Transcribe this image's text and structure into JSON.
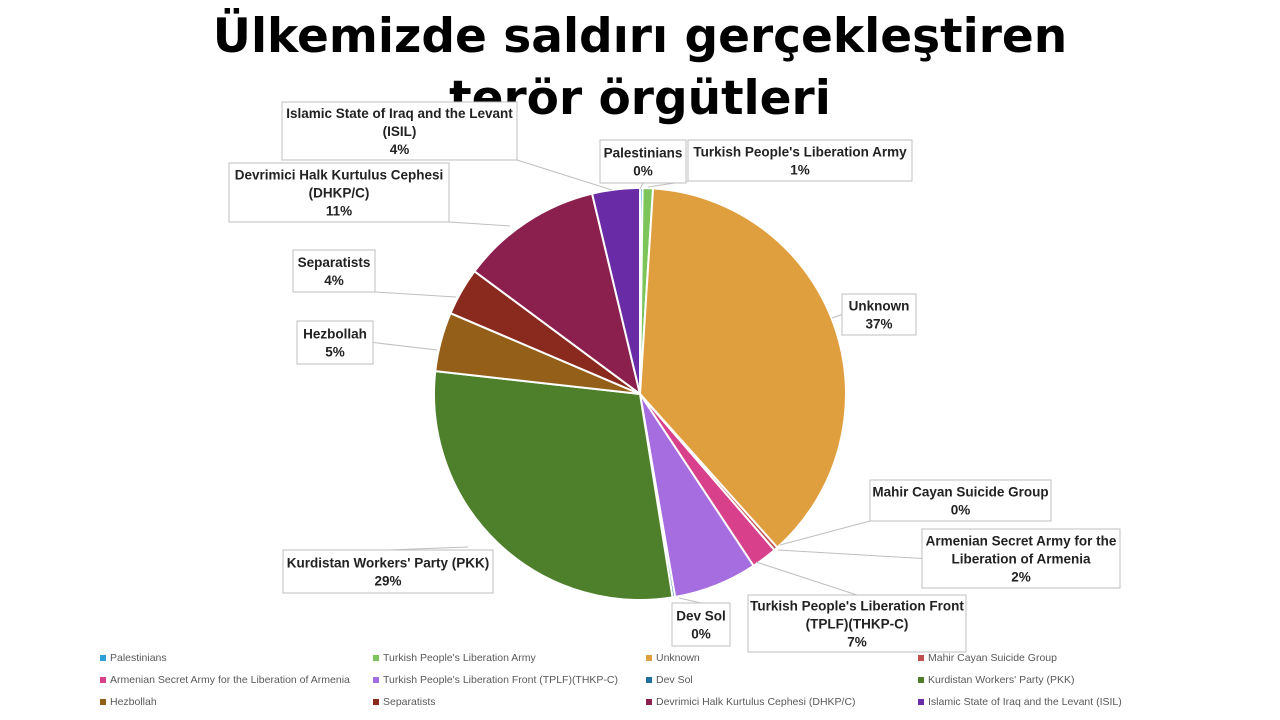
{
  "title": "Ülkemizde saldırı gerçekleştiren terör örgütleri",
  "chart_data": {
    "type": "pie",
    "slices": [
      {
        "name": "Palestinians",
        "value": 0.2,
        "label_line1": "Palestinians",
        "label_line2": "",
        "pct": "0%",
        "color": "#2e9fd8"
      },
      {
        "name": "Turkish People's Liberation Army",
        "value": 0.8,
        "label_line1": "Turkish People's Liberation Army",
        "label_line2": "",
        "pct": "1%",
        "color": "#7dc55b"
      },
      {
        "name": "Unknown",
        "value": 37,
        "label_line1": "Unknown",
        "label_line2": "",
        "pct": "37%",
        "color": "#e09f3e"
      },
      {
        "name": "Mahir Cayan Suicide Group",
        "value": 0.3,
        "label_line1": "Mahir Cayan Suicide Group",
        "label_line2": "",
        "pct": "0%",
        "color": "#c0504d"
      },
      {
        "name": "Armenian Secret Army for the Liberation of Armenia",
        "value": 2,
        "label_line1": "Armenian Secret Army for the",
        "label_line2": "Liberation of Armenia",
        "pct": "2%",
        "color": "#d9408c"
      },
      {
        "name": "Turkish People's Liberation Front (TPLF)(THKP-C)",
        "value": 6.5,
        "label_line1": "Turkish People's Liberation Front",
        "label_line2": "(TPLF)(THKP-C)",
        "pct": "7%",
        "color": "#a56de0"
      },
      {
        "name": "Dev Sol",
        "value": 0.2,
        "label_line1": "Dev Sol",
        "label_line2": "",
        "pct": "0%",
        "color": "#1f6f9c"
      },
      {
        "name": "Kurdistan Workers' Party (PKK)",
        "value": 29,
        "label_line1": "Kurdistan Workers' Party (PKK)",
        "label_line2": "",
        "pct": "29%",
        "color": "#4e7f2a"
      },
      {
        "name": "Hezbollah",
        "value": 4.6,
        "label_line1": "Hezbollah",
        "label_line2": "",
        "pct": "5%",
        "color": "#946019"
      },
      {
        "name": "Separatists",
        "value": 3.7,
        "label_line1": "Separatists",
        "label_line2": "",
        "pct": "4%",
        "color": "#8a2a1e"
      },
      {
        "name": "Devrimici Halk Kurtulus Cephesi (DHKP/C)",
        "value": 11,
        "label_line1": "Devrimici Halk Kurtulus Cephesi",
        "label_line2": "(DHKP/C)",
        "pct": "11%",
        "color": "#8b1f4d"
      },
      {
        "name": "Islamic State of Iraq and the Levant (ISIL)",
        "value": 3.7,
        "label_line1": "Islamic State of Iraq and the Levant",
        "label_line2": "(ISIL)",
        "pct": "4%",
        "color": "#6a2ca6"
      }
    ],
    "legend": {
      "items": [
        {
          "label": "Palestinians",
          "color": "#2e9fd8"
        },
        {
          "label": "Turkish People's Liberation Army",
          "color": "#7dc55b"
        },
        {
          "label": "Unknown",
          "color": "#e09f3e"
        },
        {
          "label": "Mahir Cayan Suicide Group",
          "color": "#c0504d"
        },
        {
          "label": "Armenian Secret Army for the Liberation of Armenia",
          "color": "#d9408c"
        },
        {
          "label": "Turkish People's Liberation Front (TPLF)(THKP-C)",
          "color": "#a56de0"
        },
        {
          "label": "Dev Sol",
          "color": "#1f6f9c"
        },
        {
          "label": "Kurdistan Workers' Party (PKK)",
          "color": "#4e7f2a"
        },
        {
          "label": "Hezbollah",
          "color": "#946019"
        },
        {
          "label": "Separatists",
          "color": "#8a2a1e"
        },
        {
          "label": "Devrimici Halk Kurtulus Cephesi (DHKP/C)",
          "color": "#8b1f4d"
        },
        {
          "label": "Islamic State of Iraq and the Levant (ISIL)",
          "color": "#6a2ca6"
        }
      ]
    }
  }
}
